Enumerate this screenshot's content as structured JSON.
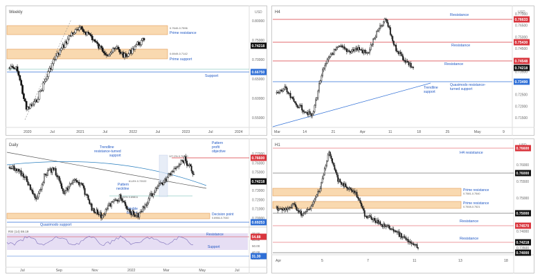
{
  "colors": {
    "bull": "#ffffff",
    "bear": "#111111",
    "resistance": "#d9363e",
    "support": "#2f6fd6",
    "zone_fill": "#f9d9b0",
    "zone_edge": "#e39b54",
    "annot_blue": "#1f57c4",
    "price_tag": "#111111",
    "res_tag": "#d9363e",
    "sup_tag": "#2f6fd6",
    "ma": "#2a7fbf",
    "ma2": "#5bb4a8",
    "rsi_line": "#7a6bb8",
    "rsi_band": "#e6def4"
  },
  "panels": [
    {
      "id": "weekly",
      "title": "Weekly",
      "axis_head": "USD",
      "x_ticks": [
        "2020",
        "Jul",
        "2021",
        "Jul",
        "2022",
        "Jul",
        "2023",
        "Jul",
        "2024"
      ],
      "y_ticks": [
        "0.80000",
        "0.75000",
        "0.70000",
        "0.65000",
        "0.60000",
        "0.55000"
      ],
      "price_tag": "0.74218",
      "side_tags": [
        {
          "text": "0.66750",
          "kind": "support"
        }
      ],
      "zones": [
        {
          "text": "Prime resistance",
          "sub": "0.7640-0.7596"
        },
        {
          "text": "Prime support",
          "sub": "0.6949-0.7142"
        }
      ],
      "levels": [
        {
          "text": "Support",
          "kind": "support"
        }
      ]
    },
    {
      "id": "h4",
      "title": "H4",
      "axis_head": "USD",
      "x_ticks": [
        "Mar",
        "14",
        "21",
        "Apr",
        "11",
        "18",
        "25",
        "May",
        "9"
      ],
      "y_ticks": [
        "0.77000",
        "0.76500",
        "0.75000",
        "0.74500",
        "0.74000",
        "0.73500",
        "0.73000",
        "0.72500",
        "0.72000",
        "0.71500"
      ],
      "price_tag": "0.74218",
      "side_tags": [
        {
          "text": "0.76633",
          "kind": "resistance"
        },
        {
          "text": "0.75430",
          "kind": "resistance"
        },
        {
          "text": "0.74548",
          "kind": "resistance"
        },
        {
          "text": "0.73490",
          "kind": "support"
        }
      ],
      "levels": [
        {
          "text": "Resistance",
          "kind": "resistance"
        },
        {
          "text": "Resistance",
          "kind": "resistance"
        },
        {
          "text": "Resistance",
          "kind": "resistance"
        },
        {
          "text": "Quasimodo resistance-turned support",
          "kind": "support"
        }
      ],
      "notes": [
        "Trendline support"
      ]
    },
    {
      "id": "daily",
      "title": "Daily",
      "x_ticks": [
        "Jul",
        "Sep",
        "Nov",
        "2022",
        "Mar",
        "May",
        "Jul"
      ],
      "y_ticks": [
        "0.77000",
        "0.76000",
        "0.75000",
        "0.74000",
        "0.73000",
        "0.72000",
        "0.71000",
        "0.70000"
      ],
      "price_tag": "0.74218",
      "side_tags": [
        {
          "text": "0.76600",
          "kind": "resistance"
        },
        {
          "text": "0.69253",
          "kind": "support"
        }
      ],
      "zones": [
        {
          "text": "Decision point",
          "sub": "0.6966-0.7040"
        }
      ],
      "levels": [
        {
          "text": "Quasimodo support",
          "kind": "support"
        }
      ],
      "notes": [
        "Trendline resistance-turned support",
        "Pattern neckline",
        "Double bottom",
        "Pattern profit objective",
        "61.8% 0.72022",
        "100% 0.69811",
        "127.2% 0.76700"
      ],
      "rsi": {
        "title": "RSI (14) 59.19",
        "ticks": [
          "70.00",
          "60.00",
          "50.00",
          "40.00",
          "30.00"
        ],
        "side_tags": [
          {
            "text": "54.88",
            "kind": "resistance"
          },
          {
            "text": "31.30",
            "kind": "support"
          }
        ],
        "levels": [
          {
            "text": "Resistance",
            "kind": "resistance"
          },
          {
            "text": "Support",
            "kind": "support"
          }
        ]
      }
    },
    {
      "id": "h1",
      "title": "H1",
      "axis_head": "USD",
      "x_ticks": [
        "Apr",
        "5",
        "7",
        "11",
        "13",
        "18"
      ],
      "y_ticks": [
        "0.76500",
        "0.76000",
        "0.75500",
        "0.75000",
        "0.74500",
        "0.74000",
        "0.73500"
      ],
      "price_tag": "0.74218",
      "side_tags": [
        {
          "text": "0.76600",
          "kind": "resistance"
        },
        {
          "text": "0.76000",
          "kind": "plain"
        },
        {
          "text": "0.75000",
          "kind": "plain"
        },
        {
          "text": "0.74570",
          "kind": "resistance"
        },
        {
          "text": "0.74000",
          "kind": "plain"
        }
      ],
      "zones": [
        {
          "text": "Prime resistance",
          "sub": "0.7581-0.7540"
        },
        {
          "text": "Prime resistance",
          "sub": "0.7508-0.7521"
        }
      ],
      "levels": [
        {
          "text": "H4 resistance",
          "kind": "resistance"
        },
        {
          "text": "Resistance",
          "kind": "resistance"
        },
        {
          "text": "Resistance",
          "kind": "resistance"
        }
      ]
    }
  ]
}
